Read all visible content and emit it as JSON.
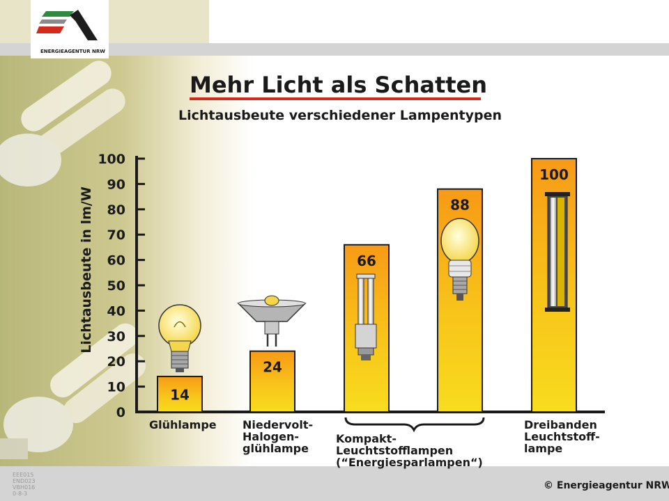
{
  "logo": {
    "text": "ENERGIEAGENTUR NRW",
    "colors": [
      "#2e8b3e",
      "#d42a1c",
      "#ffffff"
    ]
  },
  "copyright": "© Energieagentur NRW",
  "codes": "EEE015\nEND023\nVBH016\n0-8-3",
  "category_group_label": "Kompakt-Leuchtstofflampen\n(“Energiesparlampen“)",
  "chart_data": {
    "type": "bar",
    "title": "Mehr Licht als Schatten",
    "subtitle": "Lichtausbeute verschiedener Lampentypen",
    "ylabel": "Lichtausbeute in lm/W",
    "ylim": [
      0,
      100
    ],
    "yticks": [
      0,
      10,
      20,
      30,
      40,
      50,
      60,
      70,
      80,
      90,
      100
    ],
    "grid": false,
    "bar_gradient": [
      "#f8dc1e",
      "#f79a16"
    ],
    "values": [
      14,
      24,
      66,
      88,
      100
    ],
    "icons": [
      "gluehlampe-bulb-icon",
      "halogen-reflector-lamp-icon",
      "compact-fluorescent-tube-icon",
      "energy-saving-bulb-icon",
      "fluorescent-tube-icon"
    ],
    "category_labels": [
      "Glühlampe",
      "Niedervolt-\nHalogen-\nglühlampe",
      "",
      "",
      "Dreibanden\nLeuchtstoff-\nlampe"
    ]
  }
}
